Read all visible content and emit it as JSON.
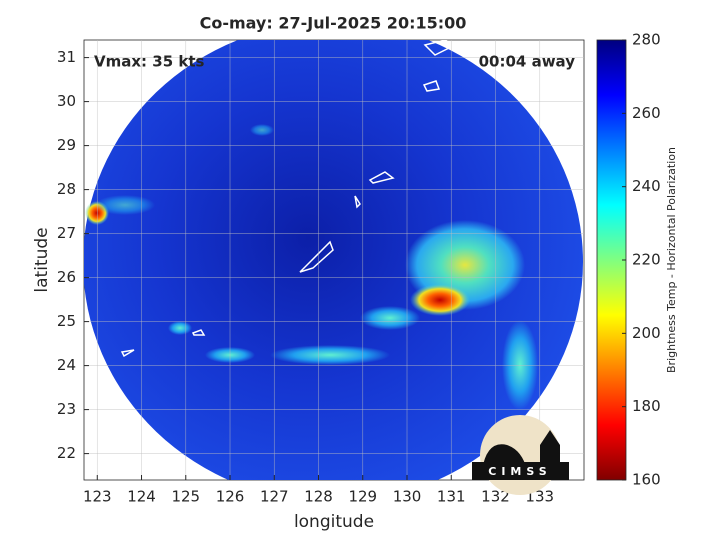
{
  "chart_data": {
    "type": "image",
    "title": "Co-may: 27-Jul-2025 20:15:00",
    "annotations": [
      "Vmax: 35 kts",
      "00:04 away"
    ],
    "xlabel": "longitude",
    "ylabel": "latitude",
    "xlim": [
      122.7,
      134
    ],
    "ylim": [
      21.4,
      31.4
    ],
    "xticks": [
      123,
      124,
      125,
      126,
      127,
      128,
      129,
      130,
      131,
      132,
      133
    ],
    "yticks": [
      22,
      23,
      24,
      25,
      26,
      27,
      28,
      29,
      30,
      31
    ],
    "grid": true,
    "colorbar": {
      "label": "Brightness Temp - Horizontal Polarization",
      "lim": [
        160,
        280
      ],
      "ticks": [
        160,
        180,
        200,
        220,
        240,
        260,
        280
      ]
    },
    "logo": "CIMSS"
  }
}
